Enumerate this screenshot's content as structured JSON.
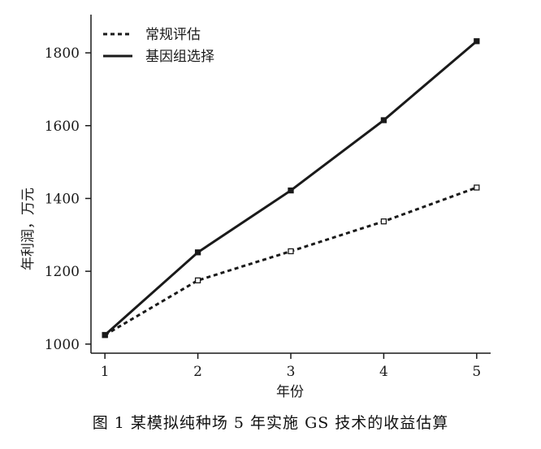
{
  "chart_data": {
    "type": "line",
    "x": [
      1,
      2,
      3,
      4,
      5
    ],
    "xlabel": "年份",
    "ylabel": "年利润，万元",
    "xlim": [
      0.85,
      5.15
    ],
    "ylim": [
      975,
      1905
    ],
    "yticks": [
      1000,
      1200,
      1400,
      1600,
      1800
    ],
    "legend_position": "top-left",
    "series": [
      {
        "name": "常规评估",
        "style": "dotted",
        "marker": "hollow-square",
        "color": "#1a1a1a",
        "values": [
          1025,
          1175,
          1255,
          1337,
          1430
        ]
      },
      {
        "name": "基因组选择",
        "style": "solid",
        "marker": "filled-square",
        "color": "#1a1a1a",
        "values": [
          1025,
          1252,
          1422,
          1615,
          1832
        ]
      }
    ]
  },
  "caption": "图 1  某模拟纯种场 5 年实施 GS 技术的收益估算"
}
